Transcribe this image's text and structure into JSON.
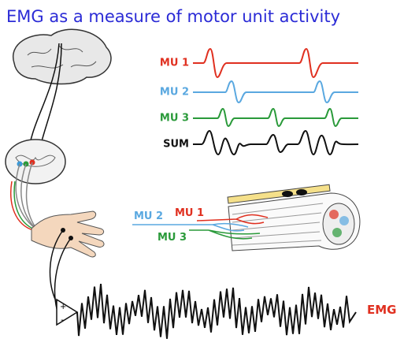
{
  "title": "EMG as a measure of motor unit activity",
  "traces": [
    {
      "label": "MU 1"
    },
    {
      "label": "MU 2"
    },
    {
      "label": "MU 3"
    },
    {
      "label": "SUM"
    }
  ],
  "muscle_labels": [
    {
      "label": "MU 2"
    },
    {
      "label": "MU 1"
    },
    {
      "label": "MU 3"
    }
  ],
  "amplifier": {
    "plus": "+",
    "minus": "-"
  },
  "output_label": "EMG"
}
